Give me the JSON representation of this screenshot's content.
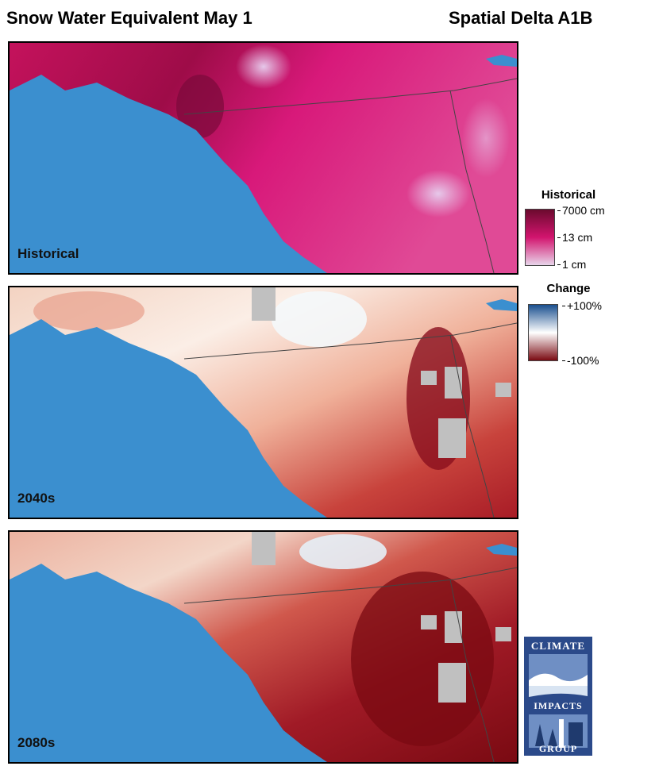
{
  "header": {
    "title": "Snow Water Equivalent May 1",
    "scenario": "Spatial Delta A1B"
  },
  "panels": [
    {
      "label": "Historical",
      "palette": "historical"
    },
    {
      "label": "2040s",
      "palette": "change"
    },
    {
      "label": "2080s",
      "palette": "change"
    }
  ],
  "legends": {
    "historical": {
      "title": "Historical",
      "ticks": [
        "7000 cm",
        "13 cm",
        "1 cm"
      ],
      "colors": [
        "#6b0a2e",
        "#d2146e",
        "#e8d4ea"
      ]
    },
    "change": {
      "title": "Change",
      "ticks": [
        "+100%",
        "-100%"
      ],
      "colors": [
        "#1a4f8f",
        "#ffffff",
        "#7a0a12"
      ]
    }
  },
  "map_colors": {
    "ocean": "#3b8fcf",
    "no_data": "#c0c0c0"
  },
  "logo": {
    "top": "CLIMATE",
    "middle": "IMPACTS",
    "bottom": "GROUP"
  }
}
